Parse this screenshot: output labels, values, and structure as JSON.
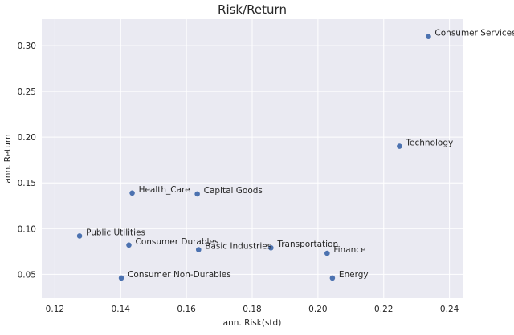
{
  "chart_data": {
    "type": "scatter",
    "title": "Risk/Return",
    "xlabel": "ann. Risk(std)",
    "ylabel": "ann. Return",
    "xlim": [
      0.116,
      0.244
    ],
    "ylim": [
      0.024,
      0.329
    ],
    "xticks": [
      0.12,
      0.14,
      0.16,
      0.18,
      0.2,
      0.22,
      0.24
    ],
    "xtick_labels": [
      "0.12",
      "0.14",
      "0.16",
      "0.18",
      "0.20",
      "0.22",
      "0.24"
    ],
    "yticks": [
      0.05,
      0.1,
      0.15,
      0.2,
      0.25,
      0.3
    ],
    "ytick_labels": [
      "0.05",
      "0.10",
      "0.15",
      "0.20",
      "0.25",
      "0.30"
    ],
    "grid": true,
    "background_color": "#eaeaf2",
    "grid_color": "#ffffff",
    "marker_color": "#4c72b0",
    "points": [
      {
        "label": "Consumer Services",
        "x": 0.2336,
        "y": 0.31
      },
      {
        "label": "Technology",
        "x": 0.2248,
        "y": 0.19
      },
      {
        "label": "Health_Care",
        "x": 0.1435,
        "y": 0.139
      },
      {
        "label": "Capital Goods",
        "x": 0.1633,
        "y": 0.138
      },
      {
        "label": "Public Utilities",
        "x": 0.1275,
        "y": 0.092
      },
      {
        "label": "Consumer Durables",
        "x": 0.1425,
        "y": 0.082
      },
      {
        "label": "Basic Industries",
        "x": 0.1637,
        "y": 0.077
      },
      {
        "label": "Transportation",
        "x": 0.1857,
        "y": 0.079
      },
      {
        "label": "Finance",
        "x": 0.2028,
        "y": 0.073
      },
      {
        "label": "Consumer Non-Durables",
        "x": 0.1402,
        "y": 0.046
      },
      {
        "label": "Energy",
        "x": 0.2044,
        "y": 0.046
      }
    ]
  }
}
